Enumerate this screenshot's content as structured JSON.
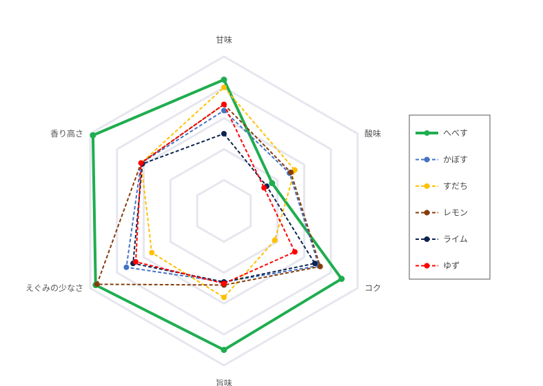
{
  "chart_data": {
    "type": "radar",
    "title": "",
    "axes": [
      "甘味",
      "酸味",
      "コク",
      "旨味",
      "えぐみの少なさ",
      "香り高さ"
    ],
    "rmax": 10,
    "grid_levels": [
      2,
      4,
      6,
      8,
      10
    ],
    "grid": true,
    "legend_position": "right",
    "series": [
      {
        "name": "へべす",
        "color": "#1fad4f",
        "dashed": false,
        "values": [
          8.5,
          3.6,
          8.8,
          9.0,
          9.6,
          9.8
        ]
      },
      {
        "name": "かぼす",
        "color": "#4472c4",
        "dashed": true,
        "values": [
          6.5,
          4.9,
          7.1,
          4.6,
          7.3,
          6.2
        ]
      },
      {
        "name": "すだち",
        "color": "#ffc000",
        "dashed": true,
        "values": [
          8.0,
          5.3,
          3.8,
          5.6,
          5.4,
          6.2
        ]
      },
      {
        "name": "レモン",
        "color": "#843c0c",
        "dashed": true,
        "values": [
          6.9,
          5.0,
          7.2,
          4.8,
          9.5,
          6.2
        ]
      },
      {
        "name": "ライム",
        "color": "#0d2350",
        "dashed": true,
        "values": [
          5.0,
          3.2,
          6.8,
          4.6,
          6.8,
          6.1
        ]
      },
      {
        "name": "ゆず",
        "color": "#ff0000",
        "dashed": true,
        "values": [
          6.9,
          3.0,
          5.3,
          4.7,
          6.6,
          6.2
        ]
      }
    ]
  }
}
